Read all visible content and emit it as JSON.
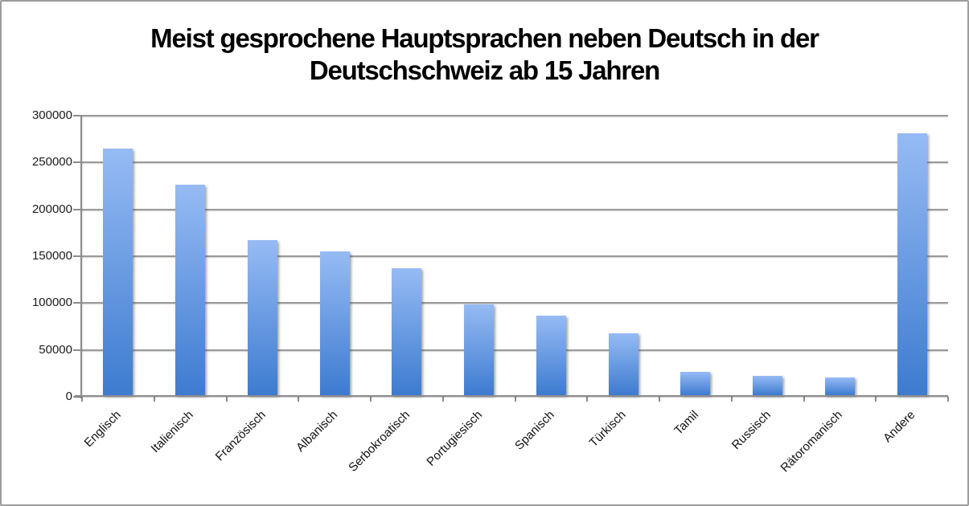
{
  "chart_data": {
    "type": "bar",
    "title": "Meist gesprochene Hauptsprachen neben Deutsch in der Deutschschweiz ab 15 Jahren",
    "title_lines": [
      "Meist gesprochene Hauptsprachen neben Deutsch in der",
      "Deutschschweiz ab 15 Jahren"
    ],
    "categories": [
      "Englisch",
      "Italienisch",
      "Französisch",
      "Albanisch",
      "Serbokroatisch",
      "Portugiesisch",
      "Spanisch",
      "Türkisch",
      "Tamil",
      "Russisch",
      "Rätoromanisch",
      "Andere"
    ],
    "values": [
      265000,
      226000,
      167000,
      155000,
      137000,
      99000,
      87000,
      68000,
      27000,
      22000,
      21000,
      281000
    ],
    "yticks": [
      0,
      50000,
      100000,
      150000,
      200000,
      250000,
      300000
    ],
    "ytick_labels": [
      "0",
      "50000",
      "100000",
      "150000",
      "200000",
      "250000",
      "300000"
    ],
    "ylim": [
      0,
      300000
    ],
    "xlabel": "",
    "ylabel": "",
    "grid": true,
    "legend": false,
    "colors": {
      "bar_gradient_top": "#96bbf4",
      "bar_gradient_bottom": "#3d7bd0",
      "gridline": "#9b9b9b",
      "axis": "#8c8c8c",
      "tick_text": "#1c1c1c",
      "title_text": "#000000",
      "frame_border": "#9d9d9d",
      "background": "#ffffff"
    }
  }
}
